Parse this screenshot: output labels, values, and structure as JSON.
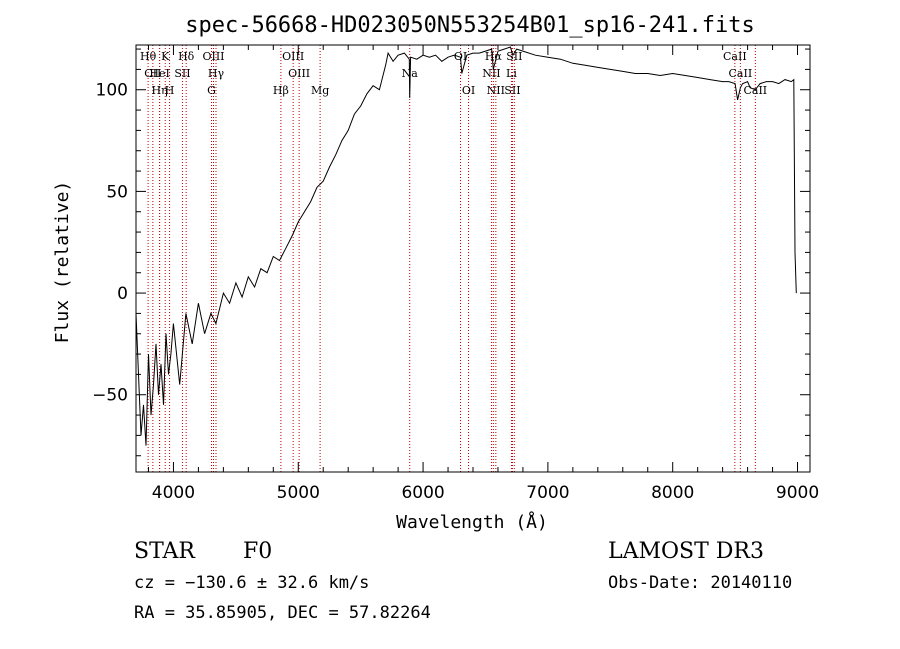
{
  "chart_data": {
    "type": "line",
    "title": "spec-56668-HD023050N553254B01_sp16-241.fits",
    "xlabel": "Wavelength (Å)",
    "ylabel": "Flux (relative)",
    "xlim": [
      3700,
      9100
    ],
    "ylim": [
      -88,
      122
    ],
    "xticks": [
      4000,
      5000,
      6000,
      7000,
      8000,
      9000
    ],
    "yticks": [
      -50,
      0,
      50,
      100
    ],
    "series": [
      {
        "name": "flux",
        "x": [
          3700,
          3720,
          3740,
          3760,
          3780,
          3800,
          3820,
          3840,
          3860,
          3880,
          3900,
          3920,
          3940,
          3960,
          3980,
          4000,
          4050,
          4100,
          4150,
          4200,
          4250,
          4300,
          4340,
          4400,
          4450,
          4500,
          4550,
          4600,
          4650,
          4700,
          4750,
          4800,
          4850,
          4900,
          4950,
          5000,
          5050,
          5100,
          5150,
          5200,
          5250,
          5300,
          5350,
          5400,
          5450,
          5500,
          5550,
          5600,
          5650,
          5700,
          5720,
          5740,
          5760,
          5800,
          5850,
          5890,
          5893,
          5900,
          5950,
          6000,
          6050,
          6100,
          6150,
          6200,
          6250,
          6300,
          6310,
          6350,
          6400,
          6450,
          6500,
          6550,
          6563,
          6600,
          6650,
          6700,
          6720,
          6750,
          6800,
          6900,
          7000,
          7100,
          7200,
          7300,
          7400,
          7500,
          7600,
          7700,
          7800,
          7900,
          8000,
          8100,
          8200,
          8300,
          8400,
          8450,
          8500,
          8520,
          8542,
          8560,
          8600,
          8620,
          8662,
          8700,
          8750,
          8800,
          8850,
          8900,
          8950,
          8970,
          8980,
          8990
        ],
        "y": [
          -10,
          -40,
          -70,
          -55,
          -75,
          -30,
          -60,
          -45,
          -25,
          -50,
          -35,
          -55,
          -20,
          -40,
          -30,
          -15,
          -45,
          -10,
          -25,
          -5,
          -20,
          -10,
          -15,
          0,
          -5,
          5,
          -2,
          8,
          3,
          12,
          10,
          18,
          16,
          22,
          28,
          35,
          40,
          45,
          52,
          55,
          62,
          68,
          75,
          80,
          88,
          92,
          98,
          102,
          100,
          112,
          118,
          116,
          114,
          117,
          118,
          115,
          96,
          116,
          115,
          117,
          116,
          117,
          114,
          116,
          117,
          116,
          108,
          117,
          118,
          118,
          119,
          120,
          110,
          119,
          120,
          121,
          117,
          120,
          119,
          117,
          116,
          115,
          113,
          112,
          111,
          110,
          109,
          108,
          108,
          107,
          108,
          107,
          106,
          105,
          104,
          104,
          103,
          95,
          101,
          103,
          104,
          101,
          100,
          103,
          104,
          104,
          103,
          105,
          104,
          105,
          20,
          0
        ]
      }
    ],
    "line_markers": [
      {
        "name": "Hθ",
        "wl": 3797
      },
      {
        "name": "CII",
        "wl": 3835
      },
      {
        "name": "Hη",
        "wl": 3889
      },
      {
        "name": "HeI",
        "wl": 3889
      },
      {
        "name": "K",
        "wl": 3934
      },
      {
        "name": "H",
        "wl": 3969
      },
      {
        "name": "SII",
        "wl": 4072
      },
      {
        "name": "Hδ",
        "wl": 4102
      },
      {
        "name": "OIII",
        "wl": 4321
      },
      {
        "name": "Hγ",
        "wl": 4341
      },
      {
        "name": "G",
        "wl": 4305
      },
      {
        "name": "Hβ",
        "wl": 4861
      },
      {
        "name": "OIII",
        "wl": 4959
      },
      {
        "name": "OIII",
        "wl": 5007
      },
      {
        "name": "Mg",
        "wl": 5175
      },
      {
        "name": "Na",
        "wl": 5893
      },
      {
        "name": "OI",
        "wl": 6300
      },
      {
        "name": "OI",
        "wl": 6364
      },
      {
        "name": "NII",
        "wl": 6548
      },
      {
        "name": "Hα",
        "wl": 6563
      },
      {
        "name": "NII",
        "wl": 6583
      },
      {
        "name": "Li",
        "wl": 6708
      },
      {
        "name": "SII",
        "wl": 6716
      },
      {
        "name": "SII",
        "wl": 6731
      },
      {
        "name": "CaII",
        "wl": 8498
      },
      {
        "name": "CaII",
        "wl": 8542
      },
      {
        "name": "CaII",
        "wl": 8662
      }
    ],
    "marker_labels_printed": [
      "Hθ",
      "CII",
      "HeI",
      "K",
      "Hη",
      "SII",
      "H",
      "Hδ",
      "OIII",
      "Hγ",
      "G",
      "OIII",
      "OIII",
      "Hβ",
      "Mg",
      "Na",
      "OI",
      "OI",
      "Hα",
      "SII",
      "NII",
      "NII",
      "Li",
      "SII",
      "CaII",
      "CaII",
      "CaII"
    ]
  },
  "info": {
    "class": "STAR",
    "subclass": "F0",
    "survey": "LAMOST DR3",
    "cz": "cz = −130.6 ± 32.6 km/s",
    "obs_date": "Obs-Date: 20140110",
    "radec": "RA =  35.85905, DEC =  57.82264"
  },
  "colors": {
    "line": "#000000",
    "marker": "#c00000",
    "background": "#ffffff"
  }
}
